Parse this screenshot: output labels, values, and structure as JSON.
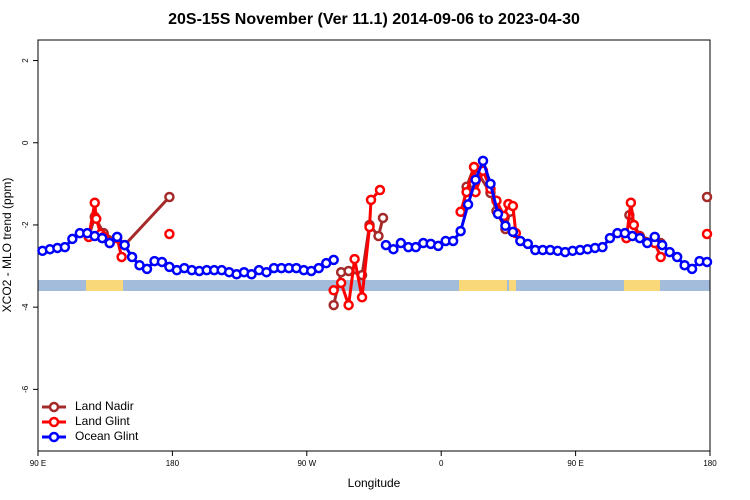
{
  "chart_data": {
    "type": "line",
    "title": "20S-15S November (Ver 11.1)   2014-09-06 to 2023-04-30",
    "x_label": "Longitude",
    "y_label": "XCO2 - MLO trend (ppm)",
    "xlim": [
      90,
      540
    ],
    "xticks": [
      {
        "value": 90,
        "label": "90 E"
      },
      {
        "value": 180,
        "label": "180"
      },
      {
        "value": 270,
        "label": "90 W"
      },
      {
        "value": 360,
        "label": "0"
      },
      {
        "value": 450,
        "label": "90 E"
      },
      {
        "value": 540,
        "label": "180"
      }
    ],
    "ylim": [
      -7.5,
      2.5
    ],
    "yticks": [
      2,
      0,
      -2,
      -4,
      -6
    ],
    "legend": "bottomleft",
    "series": [
      {
        "name": "Land Nadir",
        "color": "#a52a2a",
        "x": [
          124,
          128,
          134,
          148,
          178,
          null,
          288,
          293,
          298,
          307,
          312,
          318,
          321,
          null,
          374,
          377,
          382,
          393,
          397,
          403,
          406,
          null,
          486,
          493,
          507,
          null,
          538
        ],
        "values": [
          -2.29,
          -1.8,
          -2.2,
          -2.49,
          -1.32,
          null,
          -3.95,
          -3.15,
          -3.12,
          -3.22,
          -2.0,
          -2.27,
          -1.83,
          null,
          -1.68,
          -1.07,
          -0.59,
          -1.22,
          -1.66,
          -2.1,
          -1.68,
          null,
          -1.76,
          -2.27,
          -2.44,
          null,
          -1.32
        ]
      },
      {
        "name": "Land Glint",
        "color": "#ff0000",
        "x": [
          124,
          128,
          129,
          132,
          134,
          138,
          143,
          146,
          null,
          178,
          null,
          288,
          293,
          298,
          302,
          307,
          312,
          313,
          319,
          null,
          373,
          377,
          382,
          383,
          388,
          393,
          397,
          402,
          405,
          408,
          410,
          null,
          484,
          487,
          489,
          492,
          503,
          507,
          null,
          538
        ],
        "values": [
          -2.29,
          -1.46,
          -1.85,
          -2.22,
          -2.29,
          -2.44,
          -2.32,
          -2.78,
          null,
          -2.22,
          null,
          -3.59,
          -3.41,
          -3.95,
          -2.83,
          -3.76,
          -2.05,
          -1.39,
          -1.15,
          null,
          -1.68,
          -1.2,
          -0.59,
          -1.2,
          -0.68,
          -1.12,
          -1.41,
          -1.78,
          -1.49,
          -1.54,
          -2.2,
          null,
          -2.32,
          -1.46,
          -2.0,
          -2.27,
          -2.44,
          -2.78,
          null,
          -2.22
        ]
      },
      {
        "name": "Ocean Glint",
        "color": "#0000ff",
        "x": [
          93,
          98,
          103,
          108,
          113,
          118,
          123,
          128,
          133,
          138,
          143,
          148,
          153,
          158,
          163,
          168,
          173,
          178,
          183,
          188,
          193,
          198,
          203,
          208,
          213,
          218,
          223,
          228,
          233,
          238,
          243,
          248,
          253,
          258,
          263,
          268,
          273,
          278,
          283,
          288,
          293,
          298,
          303,
          308,
          313,
          318,
          323,
          328,
          333,
          338,
          343,
          348,
          353,
          358,
          363,
          368,
          373,
          378,
          383,
          388,
          393,
          398,
          403,
          408,
          413,
          418,
          423,
          428,
          433,
          438,
          443,
          448,
          453,
          458,
          463,
          468,
          473,
          478,
          483,
          488,
          493,
          498,
          503,
          508,
          513,
          518,
          523,
          528,
          533,
          538
        ],
        "values": [
          -2.63,
          -2.59,
          -2.56,
          -2.54,
          -2.34,
          -2.2,
          -2.2,
          -2.27,
          -2.32,
          -2.44,
          -2.29,
          -2.49,
          -2.78,
          -2.98,
          -3.07,
          -2.88,
          -2.9,
          -3.02,
          -3.1,
          -3.05,
          -3.1,
          -3.12,
          -3.1,
          -3.1,
          -3.1,
          -3.15,
          -3.2,
          -3.15,
          -3.2,
          -3.1,
          -3.15,
          -3.05,
          -3.05,
          -3.05,
          -3.05,
          -3.1,
          -3.12,
          -3.05,
          -2.93,
          -2.85,
          null,
          null,
          null,
          null,
          null,
          null,
          -2.49,
          -2.59,
          -2.44,
          -2.54,
          -2.54,
          -2.44,
          -2.46,
          -2.51,
          -2.39,
          -2.39,
          -2.15,
          -1.5,
          -0.9,
          -0.44,
          -1.0,
          -1.73,
          -2.02,
          -2.17,
          -2.39,
          -2.46,
          -2.61,
          -2.61,
          -2.61,
          -2.63,
          -2.66,
          -2.63,
          -2.61,
          -2.59,
          -2.56,
          -2.54,
          -2.32,
          -2.2,
          -2.2,
          -2.27,
          -2.32,
          -2.44,
          -2.29,
          -2.49,
          -2.66,
          -2.78,
          -2.98,
          -3.07,
          -2.88,
          -2.9
        ]
      }
    ]
  }
}
